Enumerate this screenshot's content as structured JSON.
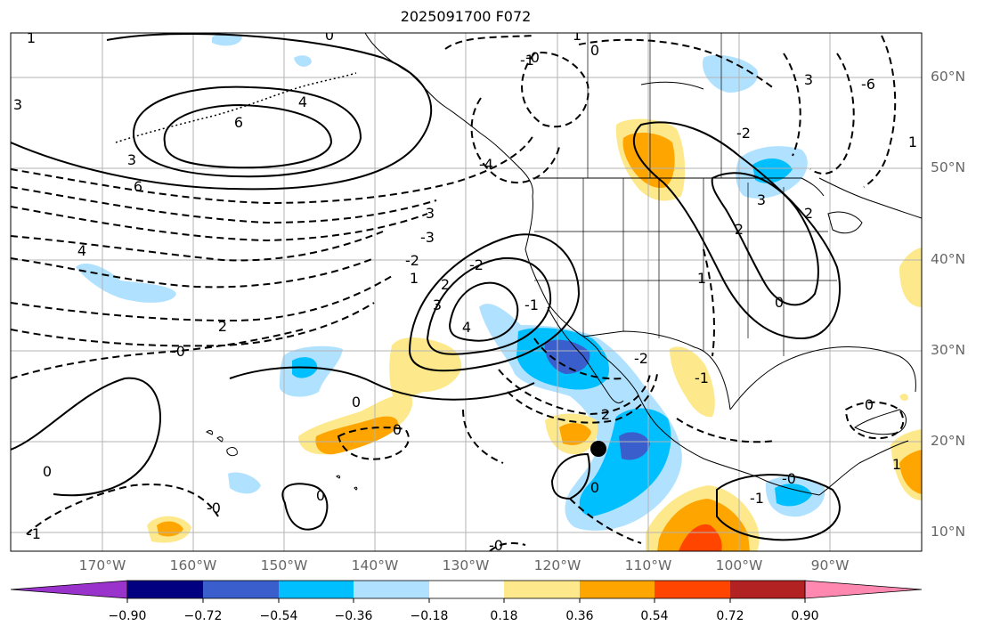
{
  "title": "2025091700 F072",
  "map": {
    "lon_range": [
      -180,
      -80
    ],
    "lat_range": [
      8,
      65
    ],
    "gridlines": true,
    "lat_labels": [
      "60°N",
      "50°N",
      "40°N",
      "30°N",
      "20°N",
      "10°N"
    ],
    "lon_labels": [
      "170°W",
      "160°W",
      "150°W",
      "140°W",
      "130°W",
      "120°W",
      "110°W",
      "100°W",
      "90°W"
    ],
    "contour_labels": [
      "1",
      "0",
      "1",
      "0",
      "-1",
      "-0",
      "3",
      "4",
      "6",
      "3",
      "6",
      "4",
      "2",
      "3",
      "-4",
      "-3",
      "-2",
      "1",
      "2",
      "3",
      "4",
      "-2",
      "-0",
      "0",
      "0",
      "0",
      "-0",
      "2",
      "0",
      "-1",
      "-0",
      "-1",
      "-1",
      "-2",
      "0",
      "-0",
      "-1",
      "0",
      "1",
      "1",
      "-6",
      "3",
      "3",
      "2",
      "2",
      "-2",
      "1",
      "0"
    ],
    "storm_marker": {
      "lon": -116,
      "lat": 19.3
    },
    "colors": {
      "gridline": "#b3b3b3",
      "coastline": "#000000",
      "contour": "#000000",
      "axis_label": "#666666"
    }
  },
  "colorbar": {
    "colors": [
      "#9933cc",
      "#000080",
      "#3a5fcd",
      "#00bfff",
      "#b0e2ff",
      "#ffffff",
      "#fde98c",
      "#ffa500",
      "#ff4500",
      "#b22222",
      "#ff88b0"
    ],
    "tick_labels": [
      "−0.90",
      "−0.72",
      "−0.54",
      "−0.36",
      "−0.18",
      "0.18",
      "0.36",
      "0.54",
      "0.72",
      "0.90"
    ]
  }
}
